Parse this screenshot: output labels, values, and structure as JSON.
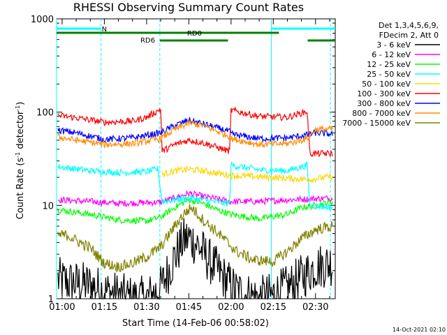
{
  "chart_data": {
    "type": "line",
    "title": "RHESSI Observing Summary Count Rates",
    "xlabel": "Start Time (14-Feb-06 00:58:02)",
    "ylabel_main": "Count Rate (s",
    "ylabel_sup1": "-1",
    "ylabel_mid": " detector",
    "ylabel_sup2": "-1",
    "ylabel_end": ")",
    "x_range_minutes": [
      58.03,
      157.0
    ],
    "y_scale": "log",
    "ylim": [
      1,
      1000
    ],
    "x_ticks": [
      {
        "m": 60,
        "label": "01:00"
      },
      {
        "m": 75,
        "label": "01:15"
      },
      {
        "m": 90,
        "label": "01:30"
      },
      {
        "m": 105,
        "label": "01:45"
      },
      {
        "m": 120,
        "label": "02:00"
      },
      {
        "m": 135,
        "label": "02:15"
      },
      {
        "m": 150,
        "label": "02:30"
      }
    ],
    "y_ticks": [
      {
        "v": 1,
        "label": "1"
      },
      {
        "v": 10,
        "label": "10"
      },
      {
        "v": 100,
        "label": "100"
      },
      {
        "v": 1000,
        "label": "1000"
      }
    ],
    "legend_header": [
      "Det 1,3,4,5,6,9,",
      "FDecim 2, Att 0"
    ],
    "legend_placement": "right",
    "series": [
      {
        "name": "3 - 6 keV",
        "color": "#000000",
        "values": [
          [
            58.5,
            1.6
          ],
          [
            62,
            1.5
          ],
          [
            70,
            1.4
          ],
          [
            75,
            1.2
          ],
          [
            80,
            1.1
          ],
          [
            85,
            1.0
          ],
          [
            90,
            1.0
          ],
          [
            95,
            1.3
          ],
          [
            100,
            2.8
          ],
          [
            103,
            4.2
          ],
          [
            105,
            4.5
          ],
          [
            108,
            3.8
          ],
          [
            112,
            2.6
          ],
          [
            118,
            1.6
          ],
          [
            122,
            1.2
          ],
          [
            130,
            1.0
          ],
          [
            135,
            1.1
          ],
          [
            140,
            1.3
          ],
          [
            145,
            1.7
          ],
          [
            150,
            2.2
          ],
          [
            156,
            2.4
          ]
        ]
      },
      {
        "name": "6 - 12 keV",
        "color": "#ff00ff",
        "values": [
          [
            58.5,
            11.5
          ],
          [
            70,
            11.0
          ],
          [
            80,
            10.5
          ],
          [
            95,
            10.8
          ],
          [
            100,
            12.0
          ],
          [
            105,
            13.5
          ],
          [
            110,
            12.5
          ],
          [
            120,
            11.0
          ],
          [
            130,
            11.0
          ],
          [
            140,
            11.5
          ],
          [
            150,
            11.8
          ],
          [
            156,
            12.0
          ]
        ]
      },
      {
        "name": "12 - 25 keV",
        "color": "#00ff00",
        "values": [
          [
            58.5,
            9.0
          ],
          [
            70,
            8.0
          ],
          [
            80,
            7.0
          ],
          [
            90,
            6.8
          ],
          [
            95,
            7.5
          ],
          [
            100,
            9.5
          ],
          [
            105,
            11.5
          ],
          [
            110,
            10.5
          ],
          [
            115,
            9.0
          ],
          [
            120,
            8.0
          ],
          [
            130,
            7.2
          ],
          [
            140,
            8.0
          ],
          [
            145,
            9.5
          ],
          [
            150,
            10.0
          ],
          [
            156,
            11.0
          ]
        ]
      },
      {
        "name": "25 - 50 keV",
        "color": "#00ffff",
        "values": [
          [
            58.5,
            26.0
          ],
          [
            70,
            23.5
          ],
          [
            80,
            22.5
          ],
          [
            90,
            23.0
          ],
          [
            94,
            24.5
          ],
          [
            95.5,
            11.0
          ],
          [
            100,
            11.5
          ],
          [
            105,
            12.0
          ],
          [
            110,
            11.5
          ],
          [
            118,
            10.5
          ],
          [
            119.5,
            10.5
          ],
          [
            120,
            27.0
          ],
          [
            130,
            24.0
          ],
          [
            140,
            23.5
          ],
          [
            147,
            27.0
          ],
          [
            148,
            10.0
          ],
          [
            156,
            9.5
          ]
        ]
      },
      {
        "name": "50 - 100 keV",
        "color": "#ffd700",
        "values": [
          [
            95.5,
            21.5
          ],
          [
            100,
            23.5
          ],
          [
            105,
            24.5
          ],
          [
            110,
            23.5
          ],
          [
            119.5,
            21.0
          ],
          [
            148,
            19.0
          ],
          [
            156,
            20.5
          ]
        ]
      },
      {
        "name": "100 - 300 keV",
        "color": "#ff0000",
        "values": [
          [
            58.5,
            92.0
          ],
          [
            65,
            87.0
          ],
          [
            75,
            78.0
          ],
          [
            85,
            80.0
          ],
          [
            90,
            88.0
          ],
          [
            95,
            108.0
          ],
          [
            95.5,
            38.0
          ],
          [
            100,
            45.0
          ],
          [
            105,
            50.0
          ],
          [
            110,
            47.0
          ],
          [
            119.5,
            38.0
          ],
          [
            120,
            105.0
          ],
          [
            130,
            90.0
          ],
          [
            140,
            88.0
          ],
          [
            147,
            102.0
          ],
          [
            148,
            36.0
          ],
          [
            156,
            36.0
          ]
        ]
      },
      {
        "name": "300 - 800 keV",
        "color": "#0000ff",
        "values": [
          [
            58.5,
            64.0
          ],
          [
            65,
            60.0
          ],
          [
            75,
            51.0
          ],
          [
            85,
            53.0
          ],
          [
            95,
            60.0
          ],
          [
            100,
            72.0
          ],
          [
            105,
            82.0
          ],
          [
            110,
            75.0
          ],
          [
            119.5,
            62.0
          ],
          [
            120,
            58.0
          ],
          [
            130,
            52.0
          ],
          [
            140,
            53.0
          ],
          [
            147,
            57.0
          ],
          [
            150,
            60.0
          ],
          [
            156,
            58.0
          ]
        ]
      },
      {
        "name": "800 - 7000 keV",
        "color": "#ff8c00",
        "values": [
          [
            58.5,
            54.0
          ],
          [
            65,
            50.0
          ],
          [
            75,
            45.0
          ],
          [
            85,
            46.0
          ],
          [
            95,
            52.0
          ],
          [
            100,
            65.0
          ],
          [
            105,
            76.0
          ],
          [
            110,
            72.0
          ],
          [
            119.5,
            55.0
          ],
          [
            120,
            52.0
          ],
          [
            130,
            45.0
          ],
          [
            140,
            46.0
          ],
          [
            147,
            52.0
          ],
          [
            150,
            65.0
          ],
          [
            156,
            66.0
          ]
        ]
      },
      {
        "name": "7000 - 15000 keV",
        "color": "#808000",
        "values": [
          [
            58.5,
            4.8
          ],
          [
            62,
            4.8
          ],
          [
            65,
            4.2
          ],
          [
            70,
            3.5
          ],
          [
            75,
            2.4
          ],
          [
            80,
            2.2
          ],
          [
            85,
            2.4
          ],
          [
            90,
            2.8
          ],
          [
            95,
            3.6
          ],
          [
            100,
            6.0
          ],
          [
            103,
            8.0
          ],
          [
            106,
            9.5
          ],
          [
            110,
            7.0
          ],
          [
            114,
            5.5
          ],
          [
            118,
            4.2
          ],
          [
            122,
            3.2
          ],
          [
            128,
            2.6
          ],
          [
            135,
            2.5
          ],
          [
            140,
            3.2
          ],
          [
            145,
            4.4
          ],
          [
            150,
            5.5
          ],
          [
            156,
            6.0
          ]
        ]
      }
    ],
    "vlines_minutes": [
      58.03,
      73.8,
      94.7,
      134.3,
      155.3
    ],
    "flag_bars": [
      {
        "label": "N",
        "color": "#00ffff",
        "segments": [
          [
            58.03,
            73.8
          ],
          [
            134.3,
            157.0
          ]
        ]
      },
      {
        "label": "RD0",
        "color": "#008000",
        "segments": [
          [
            58.03,
            118.9
          ],
          [
            118.9,
            137.0
          ]
        ]
      },
      {
        "label": "RD6",
        "color": "#008000",
        "segments": [
          [
            94.7,
            118.9
          ],
          [
            147.2,
            157.0
          ]
        ]
      }
    ],
    "timestamp": "14-Oct-2021 02:10"
  }
}
